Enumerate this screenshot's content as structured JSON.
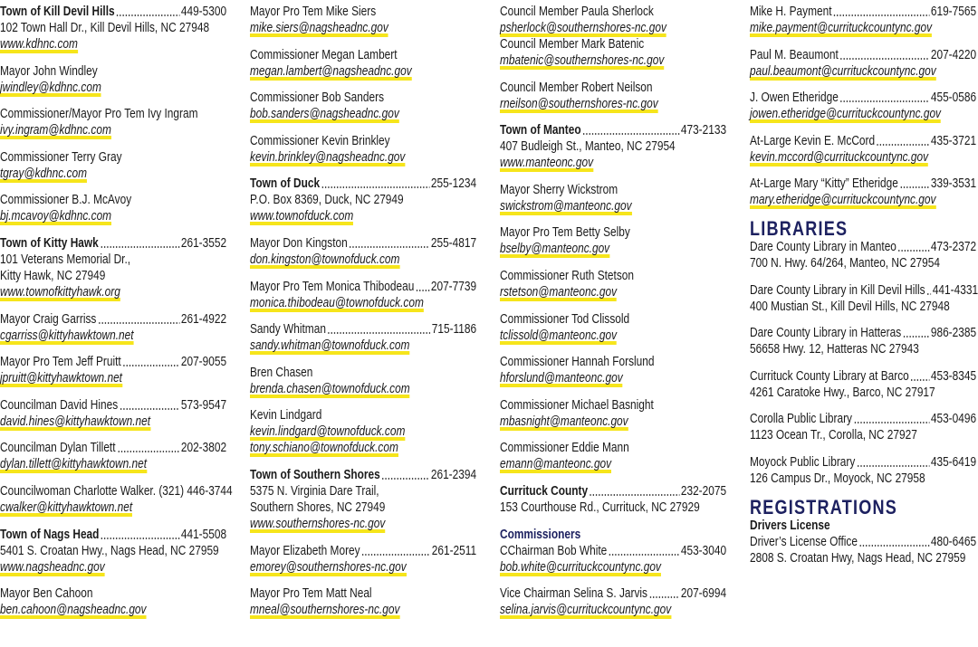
{
  "columns": [
    [
      [
        {
          "town": "Town of Kill Devil Hills",
          "phone": "449-5300"
        },
        {
          "text": "102 Town Hall Dr., Kill Devil Hills, NC 27948"
        },
        {
          "link": "www.kdhnc.com"
        }
      ],
      [
        {
          "name": "Mayor John Windley"
        },
        {
          "link": "jwindley@kdhnc.com"
        }
      ],
      [
        {
          "name": "Commissioner/Mayor Pro Tem Ivy Ingram"
        },
        {
          "link": "ivy.ingram@kdhnc.com"
        }
      ],
      [
        {
          "name": "Commissioner Terry Gray"
        },
        {
          "link": "tgray@kdhnc.com"
        }
      ],
      [
        {
          "name": "Commissioner B.J. McAvoy"
        },
        {
          "link": "bj.mcavoy@kdhnc.com"
        }
      ],
      [
        {
          "town": "Town of Kitty Hawk",
          "phone": "261-3552"
        },
        {
          "text": "101 Veterans Memorial Dr.,"
        },
        {
          "text": "Kitty Hawk, NC 27949"
        },
        {
          "link": "www.townofkittyhawk.org"
        }
      ],
      [
        {
          "name": "Mayor Craig Garriss",
          "phone": "261-4922"
        },
        {
          "link": "cgarriss@kittyhawktown.net"
        }
      ],
      [
        {
          "name": "Mayor Pro Tem Jeff Pruitt",
          "phone": "207-9055"
        },
        {
          "link": "jpruitt@kittyhawktown.net"
        }
      ],
      [
        {
          "name": "Councilman David Hines",
          "phone": "573-9547"
        },
        {
          "link": "david.hines@kittyhawktown.net"
        }
      ],
      [
        {
          "name": "Councilman Dylan Tillett",
          "phone": "202-3802"
        },
        {
          "link": "dylan.tillett@kittyhawktown.net"
        }
      ],
      [
        {
          "name": "Councilwoman Charlotte Walker. (321) 446-3744"
        },
        {
          "link": "cwalker@kittyhawktown.net"
        }
      ],
      [
        {
          "town": "Town of Nags Head",
          "phone": "441-5508"
        },
        {
          "text": "5401 S. Croatan Hwy., Nags Head, NC 27959"
        },
        {
          "link": "www.nagsheadnc.gov"
        }
      ],
      [
        {
          "name": "Mayor Ben Cahoon"
        },
        {
          "link": "ben.cahoon@nagsheadnc.gov"
        }
      ]
    ],
    [
      [
        {
          "name": "Mayor Pro Tem Mike Siers"
        },
        {
          "link": "mike.siers@nagsheadnc.gov"
        }
      ],
      [
        {
          "name": "Commissioner Megan Lambert"
        },
        {
          "link": "megan.lambert@nagsheadnc.gov"
        }
      ],
      [
        {
          "name": "Commissioner Bob Sanders"
        },
        {
          "link": "bob.sanders@nagsheadnc.gov"
        }
      ],
      [
        {
          "name": "Commissioner Kevin Brinkley"
        },
        {
          "link": "kevin.brinkley@nagsheadnc.gov"
        }
      ],
      [
        {
          "town": "Town of Duck",
          "phone": "255-1234"
        },
        {
          "text": "P.O. Box 8369, Duck, NC 27949"
        },
        {
          "link": "www.townofduck.com"
        }
      ],
      [
        {
          "name": "Mayor Don Kingston",
          "phone": "255-4817"
        },
        {
          "link": "don.kingston@townofduck.com"
        }
      ],
      [
        {
          "name": "Mayor Pro Tem Monica Thibodeau",
          "phone": "207-7739"
        },
        {
          "link": "monica.thibodeau@townofduck.com"
        }
      ],
      [
        {
          "name": "Sandy Whitman",
          "phone": "715-1186"
        },
        {
          "link": "sandy.whitman@townofduck.com"
        }
      ],
      [
        {
          "name": "Bren Chasen"
        },
        {
          "link": "brenda.chasen@townofduck.com"
        }
      ],
      [
        {
          "name": "Kevin Lindgard"
        },
        {
          "link": "kevin.lindgard@townofduck.com"
        },
        {
          "link": "tony.schiano@townofduck.com"
        }
      ],
      [
        {
          "town": "Town of Southern Shores",
          "phone": "261-2394"
        },
        {
          "text": "5375 N. Virginia Dare Trail,"
        },
        {
          "text": "Southern Shores, NC 27949"
        },
        {
          "link": "www.southernshores-nc.gov"
        }
      ],
      [
        {
          "name": "Mayor Elizabeth Morey",
          "phone": "261-2511"
        },
        {
          "link": "emorey@southernshores-nc.gov"
        }
      ],
      [
        {
          "name": "Mayor Pro Tem Matt Neal"
        },
        {
          "link": "mneal@southernshores-nc.gov"
        }
      ]
    ],
    [
      [
        {
          "name": "Council Member Paula Sherlock"
        },
        {
          "link": "psherlock@southernshores-nc.gov"
        },
        {
          "name": "Council Member Mark Batenic"
        },
        {
          "link": "mbatenic@southernshores-nc.gov"
        }
      ],
      [
        {
          "name": "Council Member Robert Neilson"
        },
        {
          "link": "rneilson@southernshores-nc.gov"
        }
      ],
      [
        {
          "town": "Town of Manteo",
          "phone": "473-2133"
        },
        {
          "text": "407 Budleigh St., Manteo, NC 27954"
        },
        {
          "link": "www.manteonc.gov"
        }
      ],
      [
        {
          "name": "Mayor Sherry Wickstrom"
        },
        {
          "link": "swickstrom@manteonc.gov"
        }
      ],
      [
        {
          "name": "Mayor Pro Tem Betty Selby"
        },
        {
          "link": "bselby@manteonc.gov"
        }
      ],
      [
        {
          "name": "Commissioner Ruth Stetson"
        },
        {
          "link": "rstetson@manteonc.gov"
        }
      ],
      [
        {
          "name": "Commissioner Tod Clissold"
        },
        {
          "link": "tclissold@manteonc.gov"
        }
      ],
      [
        {
          "name": "Commissioner Hannah Forslund"
        },
        {
          "link": "hforslund@manteonc.gov"
        }
      ],
      [
        {
          "name": "Commissioner Michael Basnight"
        },
        {
          "link": "mbasnight@manteonc.gov"
        }
      ],
      [
        {
          "name": "Commissioner Eddie Mann"
        },
        {
          "link": "emann@manteonc.gov"
        }
      ],
      [
        {
          "town": "Currituck County",
          "phone": "232-2075"
        },
        {
          "text": "153 Courthouse Rd., Currituck, NC 27929"
        }
      ],
      [
        {
          "sub": "Commissioners"
        },
        {
          "name": "CChairman Bob White",
          "phone": "453-3040"
        },
        {
          "link": "bob.white@currituckcountync.gov"
        }
      ],
      [
        {
          "name": "Vice Chairman Selina S. Jarvis",
          "phone": "207-6994"
        },
        {
          "link": "selina.jarvis@currituckcountync.gov"
        }
      ]
    ],
    [
      [
        {
          "name": "Mike H. Payment",
          "phone": "619-7565"
        },
        {
          "link": "mike.payment@currituckcountync.gov"
        }
      ],
      [
        {
          "name": "Paul M. Beaumont",
          "phone": "207-4220"
        },
        {
          "link": "paul.beaumont@currituckcountync.gov"
        }
      ],
      [
        {
          "name": "J. Owen Etheridge",
          "phone": "455-0586"
        },
        {
          "link": "jowen.etheridge@currituckcountync.gov"
        }
      ],
      [
        {
          "name": "At-Large Kevin E. McCord",
          "phone": "435-3721"
        },
        {
          "link": "kevin.mccord@currituckcountync.gov"
        }
      ],
      [
        {
          "name": "At-Large Mary “Kitty” Etheridge",
          "phone": "339-3531"
        },
        {
          "link": "mary.etheridge@currituckcountync.gov"
        }
      ],
      [
        {
          "heading": "LIBRARIES"
        },
        {
          "name": "Dare County Library in Manteo",
          "phone": "473-2372"
        },
        {
          "text": "700 N. Hwy. 64/264, Manteo, NC 27954"
        }
      ],
      [
        {
          "name": "Dare County Library in Kill Devil Hills",
          "phone": "441-4331"
        },
        {
          "text": "400 Mustian St., Kill Devil Hills, NC 27948"
        }
      ],
      [
        {
          "name": "Dare County Library in Hatteras",
          "phone": "986-2385"
        },
        {
          "text": "56658 Hwy. 12, Hatteras NC 27943"
        }
      ],
      [
        {
          "name": "Currituck County Library at Barco",
          "phone": "453-8345"
        },
        {
          "text": "4261 Caratoke Hwy., Barco, NC 27917"
        }
      ],
      [
        {
          "name": "Corolla Public Library",
          "phone": "453-0496"
        },
        {
          "text": "1123 Ocean Tr., Corolla, NC 27927"
        }
      ],
      [
        {
          "name": "Moyock Public Library",
          "phone": "435-6419"
        },
        {
          "text": "126 Campus Dr., Moyock, NC 27958"
        }
      ],
      [
        {
          "heading": "REGISTRATIONS"
        },
        {
          "bold": "Drivers License"
        },
        {
          "name": "Driver’s License Office",
          "phone": "480-6465"
        },
        {
          "text": "2808 S. Croatan Hwy, Nags Head, NC 27959"
        }
      ]
    ]
  ]
}
